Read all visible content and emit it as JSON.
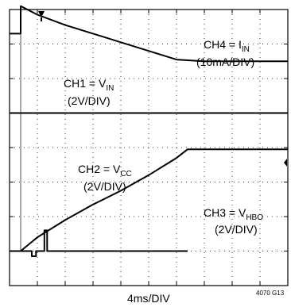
{
  "chart_data": {
    "type": "line",
    "title": "",
    "grid": true,
    "divisions": {
      "x": 10,
      "y": 8
    },
    "xlabel": "4ms/DIV",
    "figure_id": "4070 G13",
    "x_unit": "DIV",
    "y_unit": "DIV",
    "series": [
      {
        "label_main": "CH4 = I",
        "label_sub": "IN",
        "scale": "(10mA/DIV)",
        "x": [
          0,
          0.4,
          0.4,
          1,
          2,
          3,
          4,
          5,
          6,
          7,
          8,
          9,
          10
        ],
        "y": [
          6.3,
          6.3,
          7.1,
          6.85,
          6.55,
          6.3,
          6.05,
          5.8,
          5.55,
          5.5,
          5.5,
          5.5,
          5.5
        ]
      },
      {
        "label_main": "CH1 = V",
        "label_sub": "IN",
        "scale": "(2V/DIV)",
        "x": [
          0,
          0.4,
          0.4,
          10
        ],
        "y": [
          4.0,
          4.0,
          4.0,
          4.0
        ]
      },
      {
        "label_main": "CH2 = V",
        "label_sub": "CC",
        "scale": "(2V/DIV)",
        "x": [
          0,
          0.4,
          1,
          2,
          3,
          4,
          5,
          6,
          6.4,
          7,
          8,
          9,
          10
        ],
        "y": [
          0.0,
          0.0,
          0.4,
          0.9,
          1.35,
          1.75,
          2.2,
          2.7,
          2.95,
          2.95,
          2.95,
          2.95,
          2.95
        ]
      },
      {
        "label_main": "CH3 = V",
        "label_sub": "HBO",
        "scale": "(2V/DIV)",
        "x": [
          0,
          0.4,
          0.8,
          0.8,
          0.95,
          0.95,
          1.25,
          1.25,
          1.35,
          1.35,
          6.4
        ],
        "y": [
          0.0,
          0.0,
          0.0,
          -0.15,
          -0.15,
          0.0,
          0.0,
          0.6,
          0.6,
          0.0,
          0.0
        ]
      }
    ],
    "trigger_x": 0.4
  }
}
